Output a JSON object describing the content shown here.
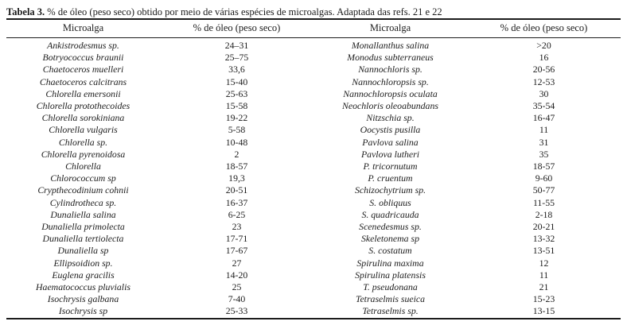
{
  "title": {
    "label": "Tabela 3.",
    "text": " % de óleo (peso seco) obtido por meio de várias espécies de microalgas. Adaptada das refs. 21 e 22"
  },
  "colors": {
    "text": "#1c1c1c",
    "background": "#ffffff",
    "rule": "#1c1c1c"
  },
  "table": {
    "headers": [
      "Microalga",
      "% de óleo (peso seco)",
      "Microalga",
      "% de óleo (peso seco)"
    ],
    "rows": [
      {
        "left_species": "Ankistrodesmus sp.",
        "left_value": "24–31",
        "right_species": "Monallanthus salina",
        "right_value": ">20"
      },
      {
        "left_species": "Botryococcus braunii",
        "left_value": "25–75",
        "right_species": "Monodus subterraneus",
        "right_value": "16"
      },
      {
        "left_species": "Chaetoceros muelleri",
        "left_value": "33,6",
        "right_species": "Nannochloris sp.",
        "right_value": "20-56"
      },
      {
        "left_species": "Chaetoceros calcitrans",
        "left_value": "15-40",
        "right_species": "Nannochloropsis sp.",
        "right_value": "12-53"
      },
      {
        "left_species": "Chlorella emersonii",
        "left_value": "25-63",
        "right_species": "Nannochloropsis oculata",
        "right_value": "30"
      },
      {
        "left_species": "Chlorella protothecoides",
        "left_value": "15-58",
        "right_species": "Neochloris oleoabundans",
        "right_value": "35-54"
      },
      {
        "left_species": "Chlorella sorokiniana",
        "left_value": "19-22",
        "right_species": "Nitzschia sp.",
        "right_value": "16-47"
      },
      {
        "left_species": "Chlorella vulgaris",
        "left_value": "5-58",
        "right_species": "Oocystis pusilla",
        "right_value": "11"
      },
      {
        "left_species": "Chlorella sp.",
        "left_value": "10-48",
        "right_species": "Pavlova salina",
        "right_value": "31"
      },
      {
        "left_species": "Chlorella pyrenoidosa",
        "left_value": "2",
        "right_species": "Pavlova lutheri",
        "right_value": "35"
      },
      {
        "left_species": "Chlorella",
        "left_value": "18-57",
        "right_species": "P. tricornutum",
        "right_value": "18-57"
      },
      {
        "left_species": "Chlorococcum sp",
        "left_value": "19,3",
        "right_species": "P. cruentum",
        "right_value": "9-60"
      },
      {
        "left_species": "Crypthecodinium cohnii",
        "left_value": "20-51",
        "right_species": "Schizochytrium sp.",
        "right_value": "50-77"
      },
      {
        "left_species": "Cylindrotheca sp.",
        "left_value": "16-37",
        "right_species": "S. obliquus",
        "right_value": "11-55"
      },
      {
        "left_species": "Dunaliella salina",
        "left_value": "6-25",
        "right_species": "S. quadricauda",
        "right_value": "2-18"
      },
      {
        "left_species": "Dunaliella primolecta",
        "left_value": "23",
        "right_species": "Scenedesmus sp.",
        "right_value": "20-21"
      },
      {
        "left_species": "Dunaliella tertiolecta",
        "left_value": "17-71",
        "right_species": "Skeletonema sp",
        "right_value": "13-32"
      },
      {
        "left_species": "Dunaliella sp",
        "left_value": "17-67",
        "right_species": "S. costatum",
        "right_value": "13-51"
      },
      {
        "left_species": "Ellipsoidion sp.",
        "left_value": "27",
        "right_species": "Spirulina maxima",
        "right_value": "12"
      },
      {
        "left_species": "Euglena gracilis",
        "left_value": "14-20",
        "right_species": "Spirulina platensis",
        "right_value": "11"
      },
      {
        "left_species": "Haematococcus pluvialis",
        "left_value": "25",
        "right_species": "T. pseudonana",
        "right_value": "21"
      },
      {
        "left_species": "Isochrysis galbana",
        "left_value": "7-40",
        "right_species": "Tetraselmis sueica",
        "right_value": "15-23"
      },
      {
        "left_species": "Isochrysis sp",
        "left_value": "25-33",
        "right_species": "Tetraselmis sp.",
        "right_value": "13-15"
      }
    ]
  }
}
